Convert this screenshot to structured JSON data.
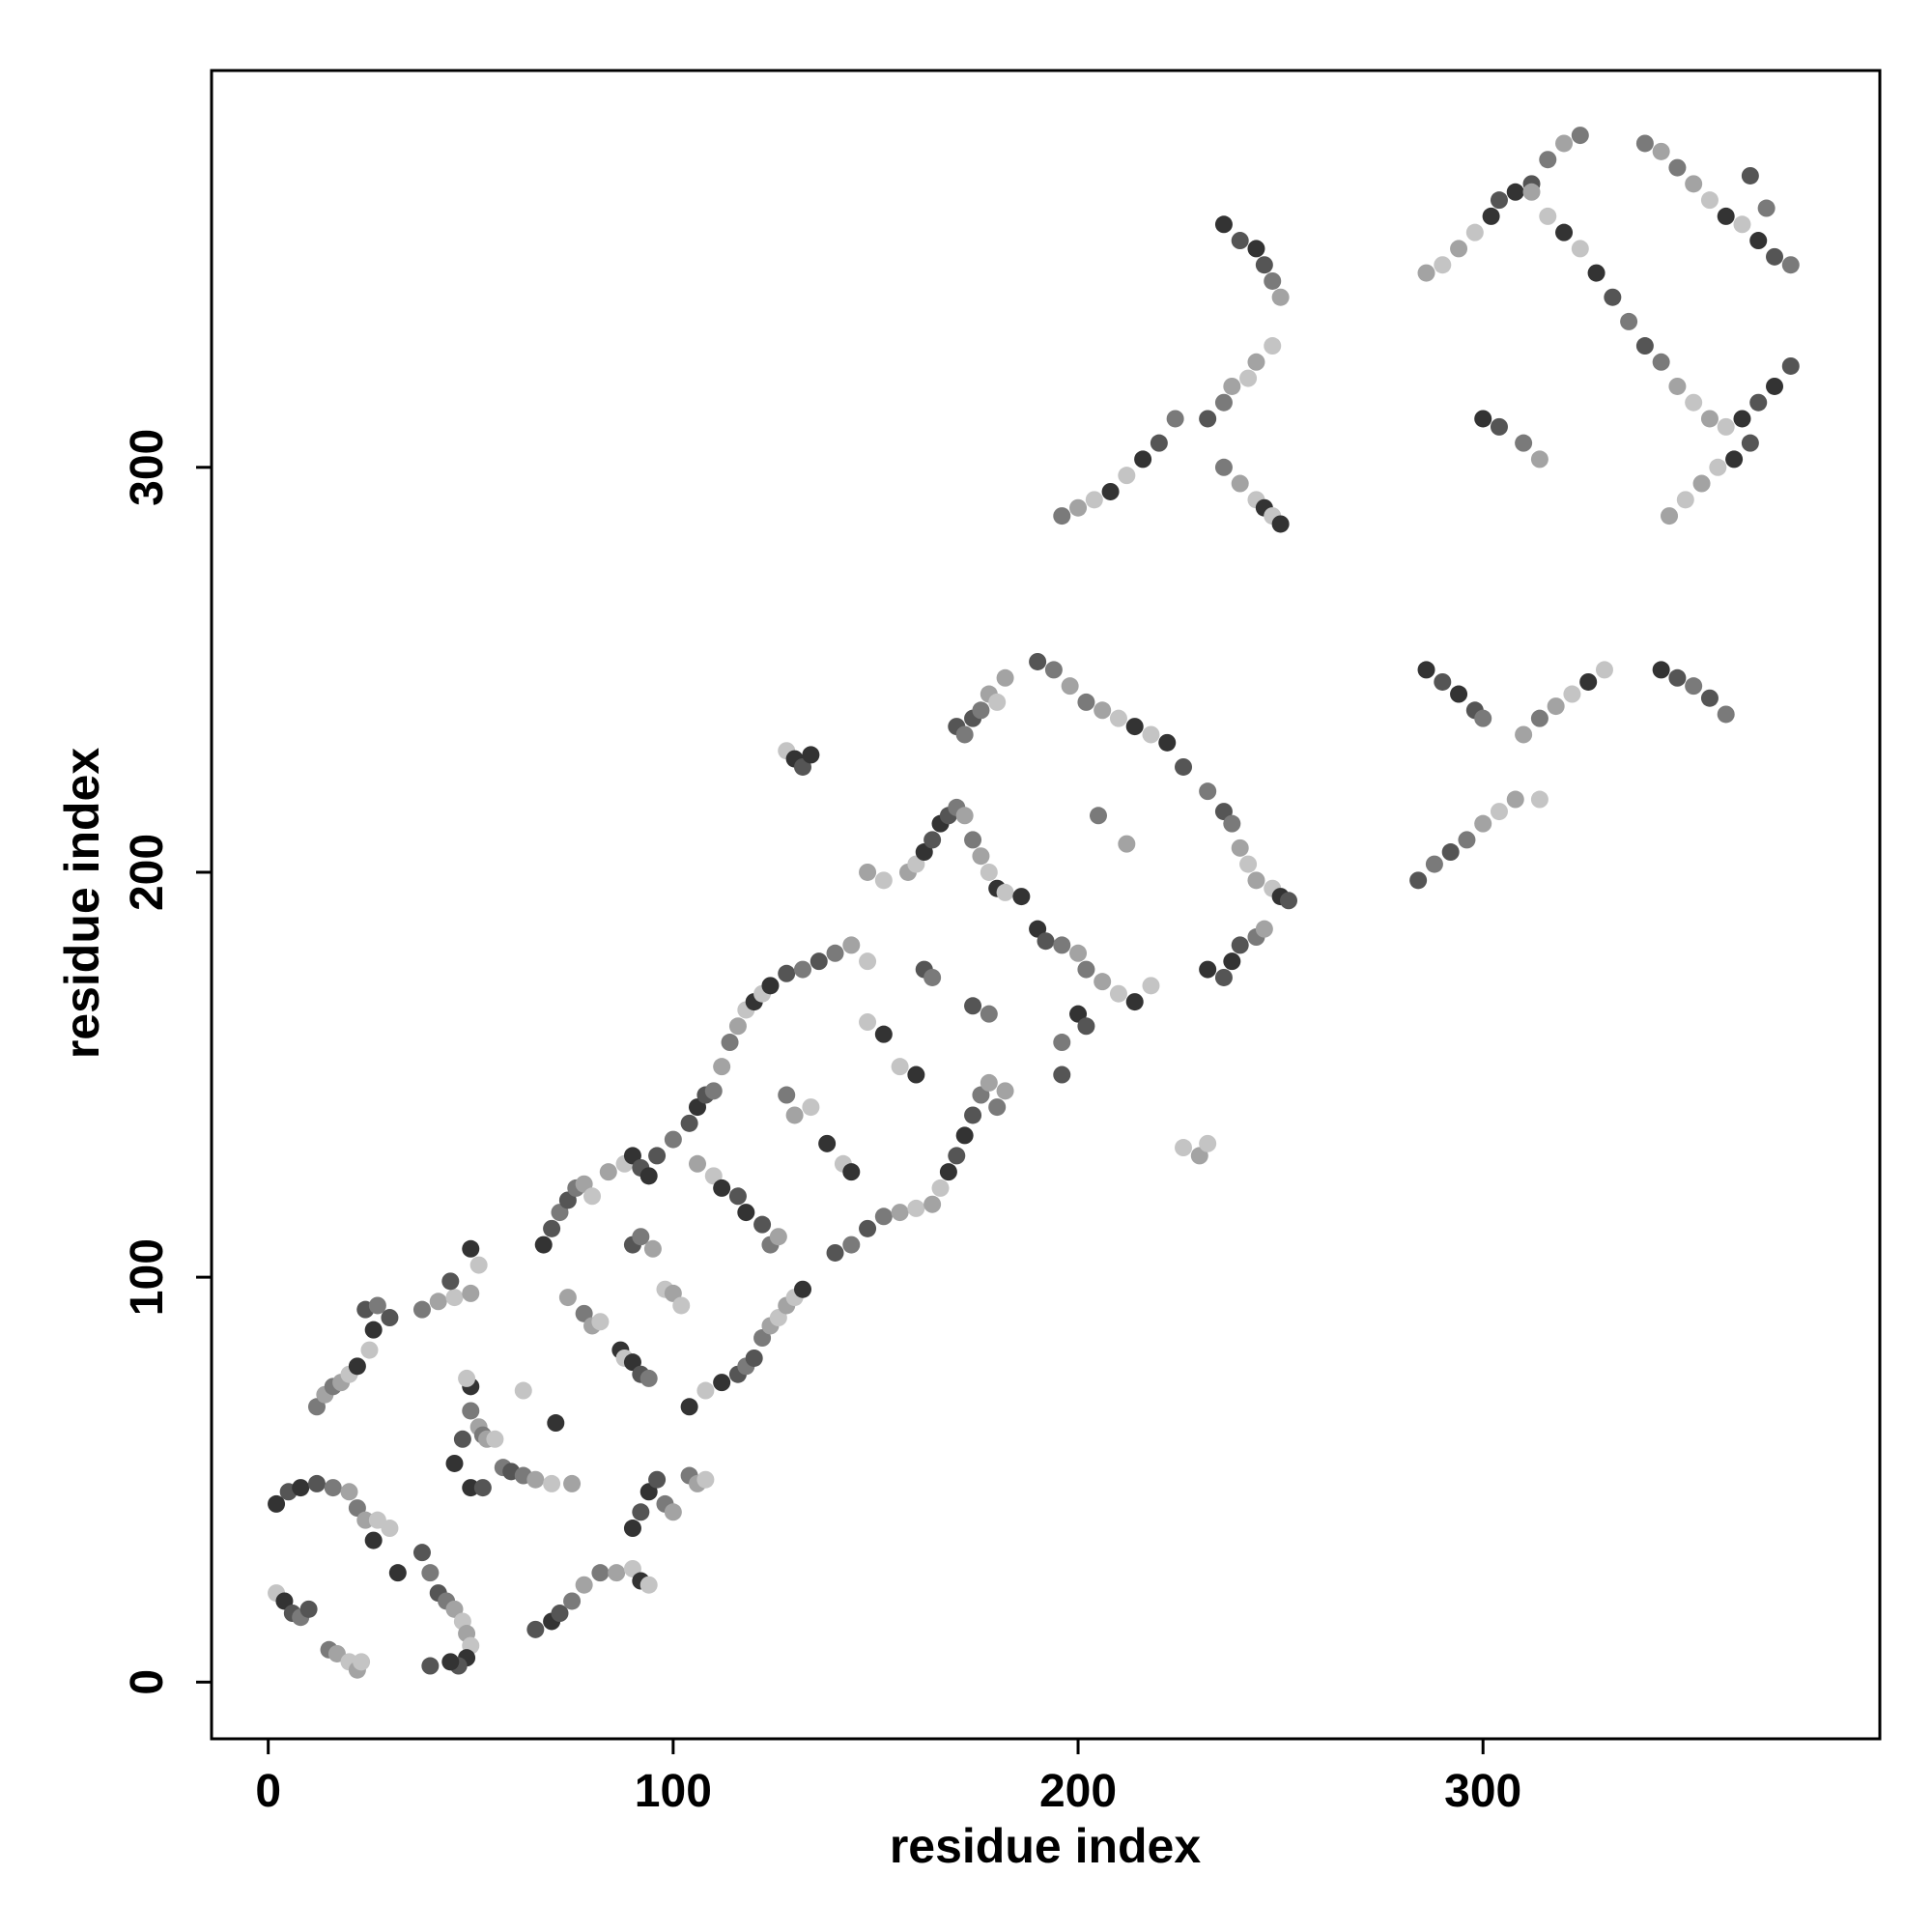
{
  "chart_data": {
    "type": "scatter",
    "xlabel": "residue index",
    "ylabel": "residue index",
    "xlim": [
      -14,
      398
    ],
    "ylim": [
      -14,
      398
    ],
    "xticks": [
      0,
      100,
      200,
      300
    ],
    "yticks": [
      0,
      100,
      200,
      300
    ],
    "palette": [
      "#c4c4c4",
      "#7a7a7a",
      "#333333",
      "#a3a3a3",
      "#555555"
    ],
    "x": [
      2,
      4,
      6,
      8,
      10,
      15,
      17,
      20,
      22,
      23,
      2,
      5,
      8,
      12,
      16,
      20,
      22,
      24,
      27,
      26,
      30,
      32,
      38,
      40,
      42,
      44,
      46,
      48,
      49,
      50,
      49,
      47,
      45,
      40,
      12,
      14,
      16,
      18,
      20,
      22,
      25,
      26,
      24,
      27,
      30,
      38,
      42,
      46,
      50,
      52,
      50,
      45,
      46,
      48,
      50,
      52,
      53,
      54,
      56,
      50,
      49,
      50,
      53,
      58,
      60,
      63,
      66,
      70,
      75,
      63,
      71,
      66,
      70,
      72,
      75,
      78,
      82,
      86,
      90,
      92,
      94,
      68,
      70,
      72,
      74,
      76,
      78,
      80,
      84,
      88,
      90,
      92,
      94,
      96,
      100,
      74,
      78,
      80,
      82,
      87,
      88,
      90,
      92,
      94,
      90,
      92,
      95,
      98,
      100,
      102,
      90,
      92,
      94,
      96,
      98,
      100,
      104,
      106,
      108,
      104,
      108,
      112,
      116,
      118,
      120,
      122,
      124,
      126,
      128,
      130,
      132,
      104,
      106,
      108,
      110,
      112,
      114,
      116,
      118,
      120,
      122,
      124,
      128,
      132,
      136,
      140,
      144,
      148,
      106,
      110,
      112,
      116,
      118,
      122,
      124,
      126,
      128,
      130,
      134,
      138,
      142,
      144,
      140,
      144,
      148,
      152,
      156,
      160,
      164,
      166,
      168,
      170,
      172,
      174,
      176,
      178,
      180,
      182,
      148,
      152,
      156,
      160,
      162,
      164,
      174,
      178,
      148,
      152,
      158,
      160,
      162,
      164,
      166,
      168,
      170,
      172,
      174,
      176,
      178,
      180,
      182,
      186,
      170,
      172,
      174,
      176,
      178,
      180,
      182,
      128,
      130,
      132,
      134,
      190,
      194,
      198,
      202,
      206,
      210,
      214,
      218,
      222,
      226,
      232,
      236,
      238,
      240,
      242,
      244,
      248,
      250,
      252,
      190,
      192,
      196,
      200,
      202,
      206,
      210,
      214,
      218,
      200,
      202,
      196,
      196,
      205,
      212,
      226,
      230,
      232,
      232,
      236,
      238,
      240,
      244,
      246,
      196,
      200,
      204,
      208,
      212,
      216,
      220,
      224,
      232,
      236,
      238,
      242,
      244,
      248,
      236,
      240,
      244,
      246,
      248,
      250,
      236,
      240,
      244,
      246,
      248,
      250,
      284,
      288,
      292,
      296,
      300,
      304,
      308,
      314,
      286,
      290,
      294,
      298,
      300,
      310,
      314,
      318,
      322,
      326,
      330,
      344,
      348,
      352,
      356,
      360,
      286,
      290,
      294,
      298,
      302,
      304,
      308,
      312,
      316,
      320,
      324,
      312,
      316,
      320,
      324,
      328,
      332,
      336,
      340,
      344,
      348,
      352,
      356,
      360,
      364,
      368,
      372,
      376,
      340,
      344,
      348,
      352,
      356,
      360,
      364,
      368,
      372,
      376,
      366,
      370,
      346,
      350,
      354,
      358,
      362,
      366,
      300,
      304,
      310,
      314
    ],
    "values": [
      22,
      20,
      17,
      16,
      18,
      8,
      7,
      5,
      3,
      5,
      44,
      47,
      48,
      49,
      48,
      47,
      43,
      40,
      40,
      35,
      38,
      27,
      32,
      27,
      22,
      20,
      18,
      15,
      12,
      9,
      6,
      4,
      5,
      4,
      68,
      71,
      73,
      74,
      76,
      78,
      82,
      87,
      92,
      93,
      90,
      92,
      94,
      95,
      96,
      103,
      107,
      99,
      54,
      60,
      67,
      63,
      61,
      60,
      60,
      73,
      75,
      48,
      48,
      53,
      52,
      51,
      50,
      49,
      49,
      72,
      64,
      13,
      15,
      17,
      20,
      24,
      27,
      27,
      28,
      25,
      24,
      108,
      112,
      116,
      119,
      122,
      123,
      120,
      126,
      128,
      130,
      127,
      125,
      130,
      134,
      95,
      91,
      88,
      89,
      82,
      80,
      79,
      76,
      75,
      108,
      110,
      107,
      97,
      96,
      93,
      38,
      42,
      47,
      50,
      44,
      42,
      51,
      49,
      50,
      68,
      72,
      74,
      76,
      78,
      80,
      85,
      88,
      90,
      93,
      95,
      97,
      138,
      142,
      145,
      146,
      152,
      158,
      162,
      166,
      168,
      170,
      172,
      175,
      176,
      178,
      180,
      182,
      178,
      128,
      125,
      122,
      120,
      116,
      113,
      108,
      110,
      145,
      140,
      142,
      133,
      128,
      126,
      106,
      108,
      112,
      115,
      116,
      117,
      118,
      122,
      126,
      130,
      135,
      140,
      145,
      148,
      142,
      146,
      163,
      160,
      152,
      150,
      176,
      174,
      167,
      165,
      200,
      198,
      200,
      202,
      205,
      208,
      212,
      214,
      216,
      214,
      208,
      204,
      200,
      196,
      195,
      194,
      236,
      234,
      238,
      240,
      244,
      242,
      248,
      230,
      228,
      226,
      229,
      252,
      250,
      246,
      242,
      240,
      238,
      236,
      234,
      232,
      226,
      220,
      215,
      212,
      206,
      202,
      198,
      196,
      194,
      193,
      186,
      183,
      182,
      180,
      176,
      173,
      170,
      168,
      172,
      165,
      162,
      158,
      150,
      214,
      207,
      132,
      130,
      133,
      176,
      174,
      178,
      182,
      184,
      186,
      288,
      290,
      292,
      294,
      298,
      302,
      306,
      312,
      312,
      316,
      320,
      322,
      326,
      330,
      360,
      356,
      354,
      350,
      346,
      342,
      300,
      296,
      292,
      290,
      288,
      286,
      198,
      202,
      205,
      208,
      212,
      215,
      218,
      218,
      250,
      247,
      244,
      240,
      238,
      234,
      238,
      241,
      244,
      247,
      250,
      250,
      248,
      246,
      243,
      239,
      348,
      350,
      354,
      358,
      362,
      366,
      368,
      370,
      376,
      380,
      382,
      368,
      362,
      358,
      354,
      348,
      342,
      336,
      330,
      326,
      320,
      316,
      312,
      310,
      312,
      316,
      320,
      325,
      380,
      378,
      374,
      370,
      366,
      362,
      360,
      356,
      352,
      350,
      372,
      364,
      288,
      292,
      296,
      300,
      302,
      306,
      312,
      310,
      306,
      302
    ]
  }
}
